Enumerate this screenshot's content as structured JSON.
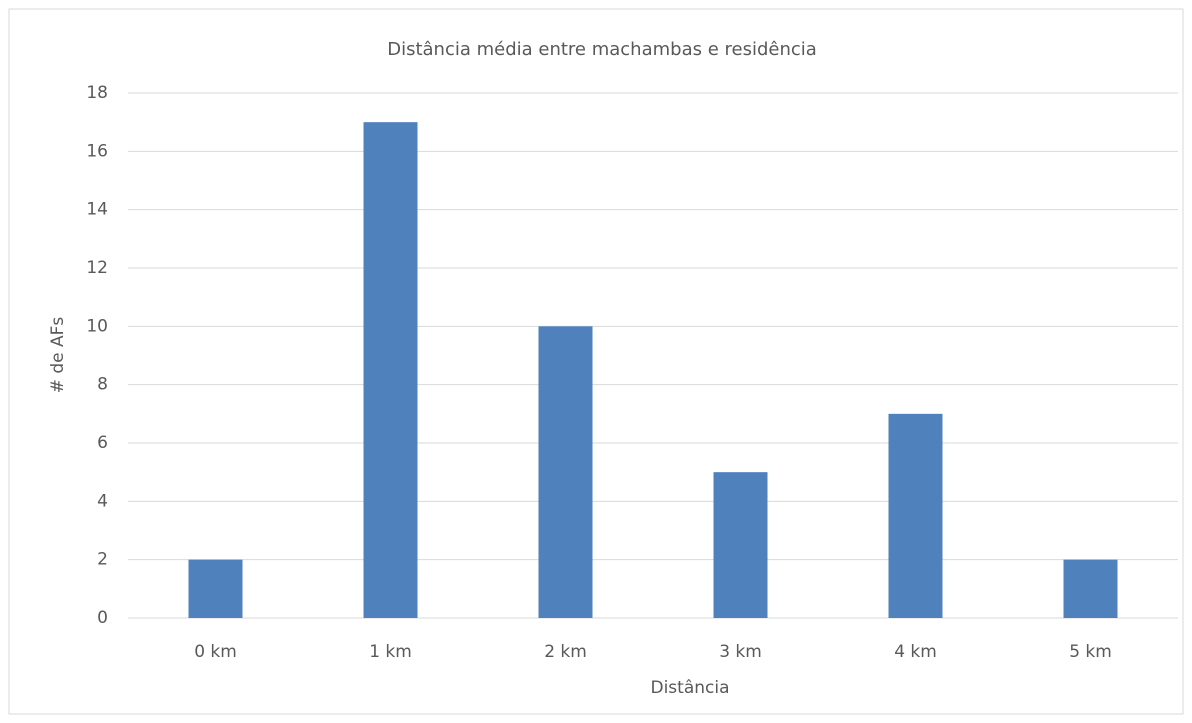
{
  "chart_data": {
    "type": "bar",
    "title": "Distância média entre machambas e residência",
    "categories": [
      "0 km",
      "1 km",
      "2 km",
      "3 km",
      "4 km",
      "5 km"
    ],
    "values": [
      2,
      17,
      10,
      5,
      7,
      2
    ],
    "color": "#4f81bd",
    "xlabel": "Distância",
    "ylabel": "# de AFs",
    "ylim": [
      0,
      18
    ],
    "yticks": [
      0,
      2,
      4,
      6,
      8,
      10,
      12,
      14,
      16,
      18
    ],
    "grid": true
  }
}
